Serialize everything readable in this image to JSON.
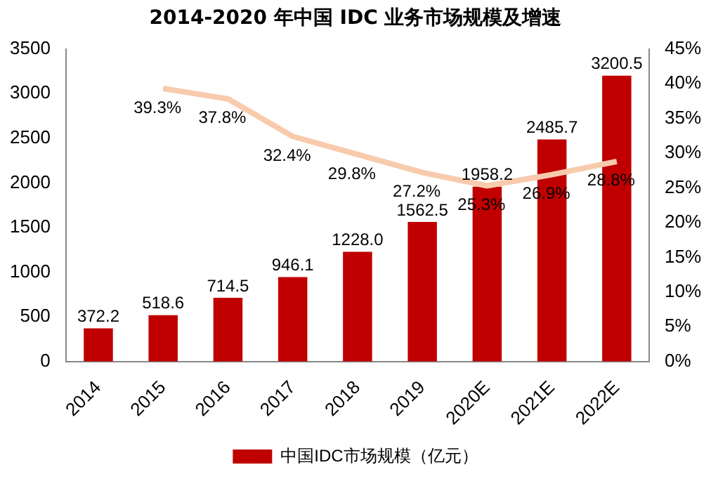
{
  "chart_data": {
    "type": "bar",
    "title": "2014-2020 年中国 IDC 业务市场规模及增速",
    "categories": [
      "2014",
      "2015",
      "2016",
      "2017",
      "2018",
      "2019",
      "2020E",
      "2021E",
      "2022E"
    ],
    "series": [
      {
        "name": "中国IDC市场规模（亿元）",
        "color": "#c00000",
        "values": [
          372.2,
          518.6,
          714.5,
          946.1,
          1228.0,
          1562.5,
          1958.2,
          2485.7,
          3200.5
        ],
        "value_labels": [
          "372.2",
          "518.6",
          "714.5",
          "946.1",
          "1228.0",
          "1562.5",
          "1958.2",
          "2485.7",
          "3200.5"
        ]
      },
      {
        "type": "line",
        "axis": "y2",
        "color": "#f8cbad",
        "values": [
          null,
          39.3,
          37.8,
          32.4,
          29.8,
          27.2,
          25.3,
          26.9,
          28.8
        ],
        "value_labels": [
          null,
          "39.3%",
          "37.8%",
          "32.4%",
          "29.8%",
          "27.2%",
          "25.3%",
          "26.9%",
          "28.8%"
        ]
      }
    ],
    "ylim": [
      0,
      3500
    ],
    "yticks": [
      0,
      500,
      1000,
      1500,
      2000,
      2500,
      3000,
      3500
    ],
    "y2lim": [
      0,
      45
    ],
    "y2ticks": [
      {
        "value": 0,
        "label": "0%"
      },
      {
        "value": 5,
        "label": "5%"
      },
      {
        "value": 10,
        "label": "10%"
      },
      {
        "value": 15,
        "label": "15%"
      },
      {
        "value": 20,
        "label": "20%"
      },
      {
        "value": 25,
        "label": "25%"
      },
      {
        "value": 30,
        "label": "30%"
      },
      {
        "value": 35,
        "label": "35%"
      },
      {
        "value": 40,
        "label": "40%"
      },
      {
        "value": 45,
        "label": "45%"
      }
    ],
    "grid": false,
    "legend": "bottom",
    "marker": "none"
  }
}
